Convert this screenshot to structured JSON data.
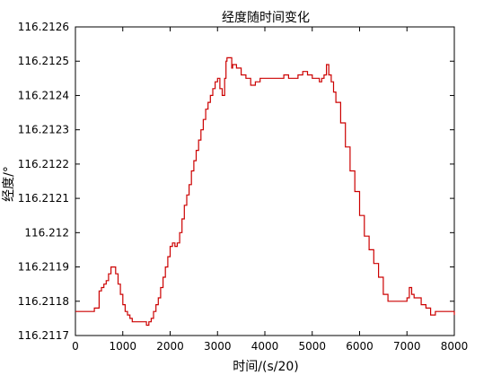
{
  "chart_data": {
    "type": "line",
    "title": "经度随时间变化",
    "xlabel": "时间/(s/20)",
    "ylabel": "经度/°",
    "xlim": [
      0,
      8000
    ],
    "ylim": [
      116.2117,
      116.2126
    ],
    "x_ticks": [
      "0",
      "1000",
      "2000",
      "3000",
      "4000",
      "5000",
      "6000",
      "7000",
      "8000"
    ],
    "y_ticks": [
      "116.2117",
      "116.2118",
      "116.2119",
      "116.212",
      "116.2121",
      "116.2122",
      "116.2123",
      "116.2124",
      "116.2125",
      "116.2126"
    ],
    "grid": false,
    "line_color": "#cc0000",
    "series": [
      {
        "x": [
          0,
          100,
          200,
          300,
          400,
          500,
          550,
          600,
          650,
          700,
          750,
          800,
          850,
          900,
          950,
          1000,
          1050,
          1100,
          1150,
          1200,
          1300,
          1400,
          1500,
          1550,
          1600,
          1650,
          1700,
          1750,
          1800,
          1850,
          1900,
          1950,
          2000,
          2050,
          2100,
          2150,
          2200,
          2250,
          2300,
          2350,
          2400,
          2450,
          2500,
          2550,
          2600,
          2650,
          2700,
          2750,
          2800,
          2850,
          2900,
          2950,
          3000,
          3050,
          3100,
          3150,
          3180,
          3200,
          3250,
          3300,
          3320,
          3350,
          3400,
          3500,
          3600,
          3700,
          3800,
          3900,
          4000,
          4200,
          4400,
          4500,
          4600,
          4700,
          4800,
          4900,
          5000,
          5100,
          5150,
          5200,
          5250,
          5300,
          5350,
          5400,
          5450,
          5500,
          5600,
          5700,
          5800,
          5900,
          6000,
          6100,
          6200,
          6300,
          6400,
          6500,
          6600,
          6700,
          6800,
          6900,
          7000,
          7050,
          7100,
          7150,
          7200,
          7300,
          7400,
          7500,
          7600,
          7700,
          7800,
          7900,
          8000
        ],
        "y": [
          116.21177,
          116.21177,
          116.21177,
          116.21177,
          116.21178,
          116.21183,
          116.21184,
          116.21185,
          116.21186,
          116.21188,
          116.2119,
          116.2119,
          116.21188,
          116.21185,
          116.21182,
          116.21179,
          116.21177,
          116.21176,
          116.21175,
          116.21174,
          116.21174,
          116.21174,
          116.21173,
          116.21174,
          116.21175,
          116.21177,
          116.21179,
          116.21181,
          116.21184,
          116.21187,
          116.2119,
          116.21193,
          116.21196,
          116.21197,
          116.21196,
          116.21197,
          116.212,
          116.21204,
          116.21208,
          116.21211,
          116.21214,
          116.21218,
          116.21221,
          116.21224,
          116.21227,
          116.2123,
          116.21233,
          116.21236,
          116.21238,
          116.2124,
          116.21242,
          116.21244,
          116.21245,
          116.21242,
          116.2124,
          116.21245,
          116.2125,
          116.21251,
          116.21251,
          116.21248,
          116.21249,
          116.21249,
          116.21248,
          116.21246,
          116.21245,
          116.21243,
          116.21244,
          116.21245,
          116.21245,
          116.21245,
          116.21246,
          116.21245,
          116.21245,
          116.21246,
          116.21247,
          116.21246,
          116.21245,
          116.21245,
          116.21244,
          116.21245,
          116.21246,
          116.21249,
          116.21246,
          116.21244,
          116.21241,
          116.21238,
          116.21232,
          116.21225,
          116.21218,
          116.21212,
          116.21205,
          116.21199,
          116.21195,
          116.21191,
          116.21187,
          116.21182,
          116.2118,
          116.2118,
          116.2118,
          116.2118,
          116.21181,
          116.21184,
          116.21182,
          116.21181,
          116.21181,
          116.21179,
          116.21178,
          116.21176,
          116.21177,
          116.21177,
          116.21177,
          116.21177,
          116.21176
        ]
      }
    ]
  }
}
